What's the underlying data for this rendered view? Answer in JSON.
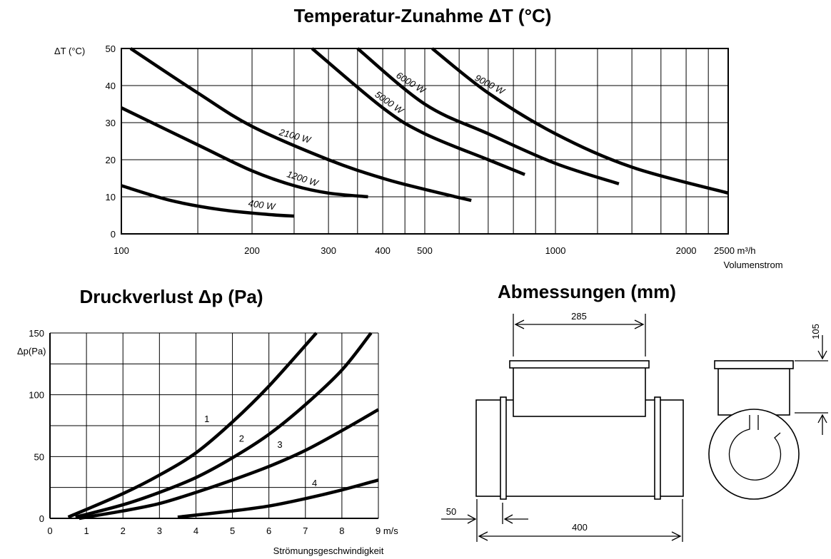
{
  "chart_data": [
    {
      "type": "line",
      "title": "Temperatur-Zunahme  ΔT (°C)",
      "ylabel": "ΔT (°C)",
      "xlabel": "Volumenstrom",
      "xunit": "m³/h",
      "xscale": "log",
      "xlim": [
        100,
        2500
      ],
      "ylim": [
        0,
        50
      ],
      "grid": true,
      "xticks": [
        100,
        200,
        300,
        400,
        500,
        1000,
        2000,
        2500
      ],
      "xtick_labels": [
        "100",
        "200",
        "300",
        "400",
        "500",
        "1000",
        "2000",
        "2500 m³/h"
      ],
      "yticks": [
        0,
        10,
        20,
        30,
        40,
        50
      ],
      "series": [
        {
          "name": "400  W",
          "x": [
            100,
            130,
            170,
            220,
            250
          ],
          "y": [
            13,
            9,
            6.5,
            5.2,
            4.8
          ]
        },
        {
          "name": "1200 W",
          "x": [
            100,
            150,
            200,
            250,
            300,
            370
          ],
          "y": [
            34,
            24,
            17,
            13,
            11,
            10
          ]
        },
        {
          "name": "2100 W",
          "x": [
            105,
            150,
            200,
            300,
            400,
            500,
            640
          ],
          "y": [
            50,
            38,
            29,
            20,
            15,
            12,
            9
          ]
        },
        {
          "name": "5000 W",
          "x": [
            275,
            400,
            500,
            700,
            850
          ],
          "y": [
            50,
            34,
            27,
            20,
            16
          ]
        },
        {
          "name": "6000 W",
          "x": [
            350,
            500,
            700,
            1000,
            1400
          ],
          "y": [
            50,
            35,
            27,
            19,
            13.5
          ]
        },
        {
          "name": "9000 W",
          "x": [
            520,
            700,
            1000,
            1500,
            2500
          ],
          "y": [
            50,
            38,
            27,
            18,
            11
          ]
        }
      ]
    },
    {
      "type": "line",
      "title": "Druckverlust  Δp (Pa)",
      "ylabel": "Δp(Pa)",
      "xlabel": "Strömungsgeschwindigkeit",
      "xunit": "m/s",
      "xlim": [
        0,
        9
      ],
      "ylim": [
        0,
        150
      ],
      "grid": true,
      "xticks": [
        0,
        1,
        2,
        3,
        4,
        5,
        6,
        7,
        8,
        9
      ],
      "xtick_labels": [
        "0",
        "1",
        "2",
        "3",
        "4",
        "5",
        "6",
        "7",
        "8",
        "9  m/s"
      ],
      "yticks": [
        0,
        50,
        100,
        150
      ],
      "series": [
        {
          "name": "1",
          "x": [
            0.5,
            2,
            3,
            4,
            5,
            6,
            7.3
          ],
          "y": [
            1,
            20,
            35,
            53,
            78,
            107,
            150
          ]
        },
        {
          "name": "2",
          "x": [
            0.7,
            2,
            3,
            4,
            5,
            6,
            7,
            8,
            8.8
          ],
          "y": [
            1,
            11,
            21,
            33,
            49,
            68,
            92,
            120,
            150
          ]
        },
        {
          "name": "3",
          "x": [
            0.8,
            2,
            3,
            4,
            5,
            6,
            7,
            8,
            9
          ],
          "y": [
            0,
            6,
            12,
            21,
            31,
            42,
            55,
            71,
            88
          ]
        },
        {
          "name": "4",
          "x": [
            3.5,
            5,
            6,
            7,
            8,
            9
          ],
          "y": [
            1,
            6,
            10,
            16,
            23,
            31
          ]
        }
      ]
    }
  ],
  "dimensions": {
    "title": "Abmessungen (mm)",
    "labels": {
      "width_box": "285",
      "height_box": "105",
      "collar": "50",
      "length": "400"
    }
  }
}
